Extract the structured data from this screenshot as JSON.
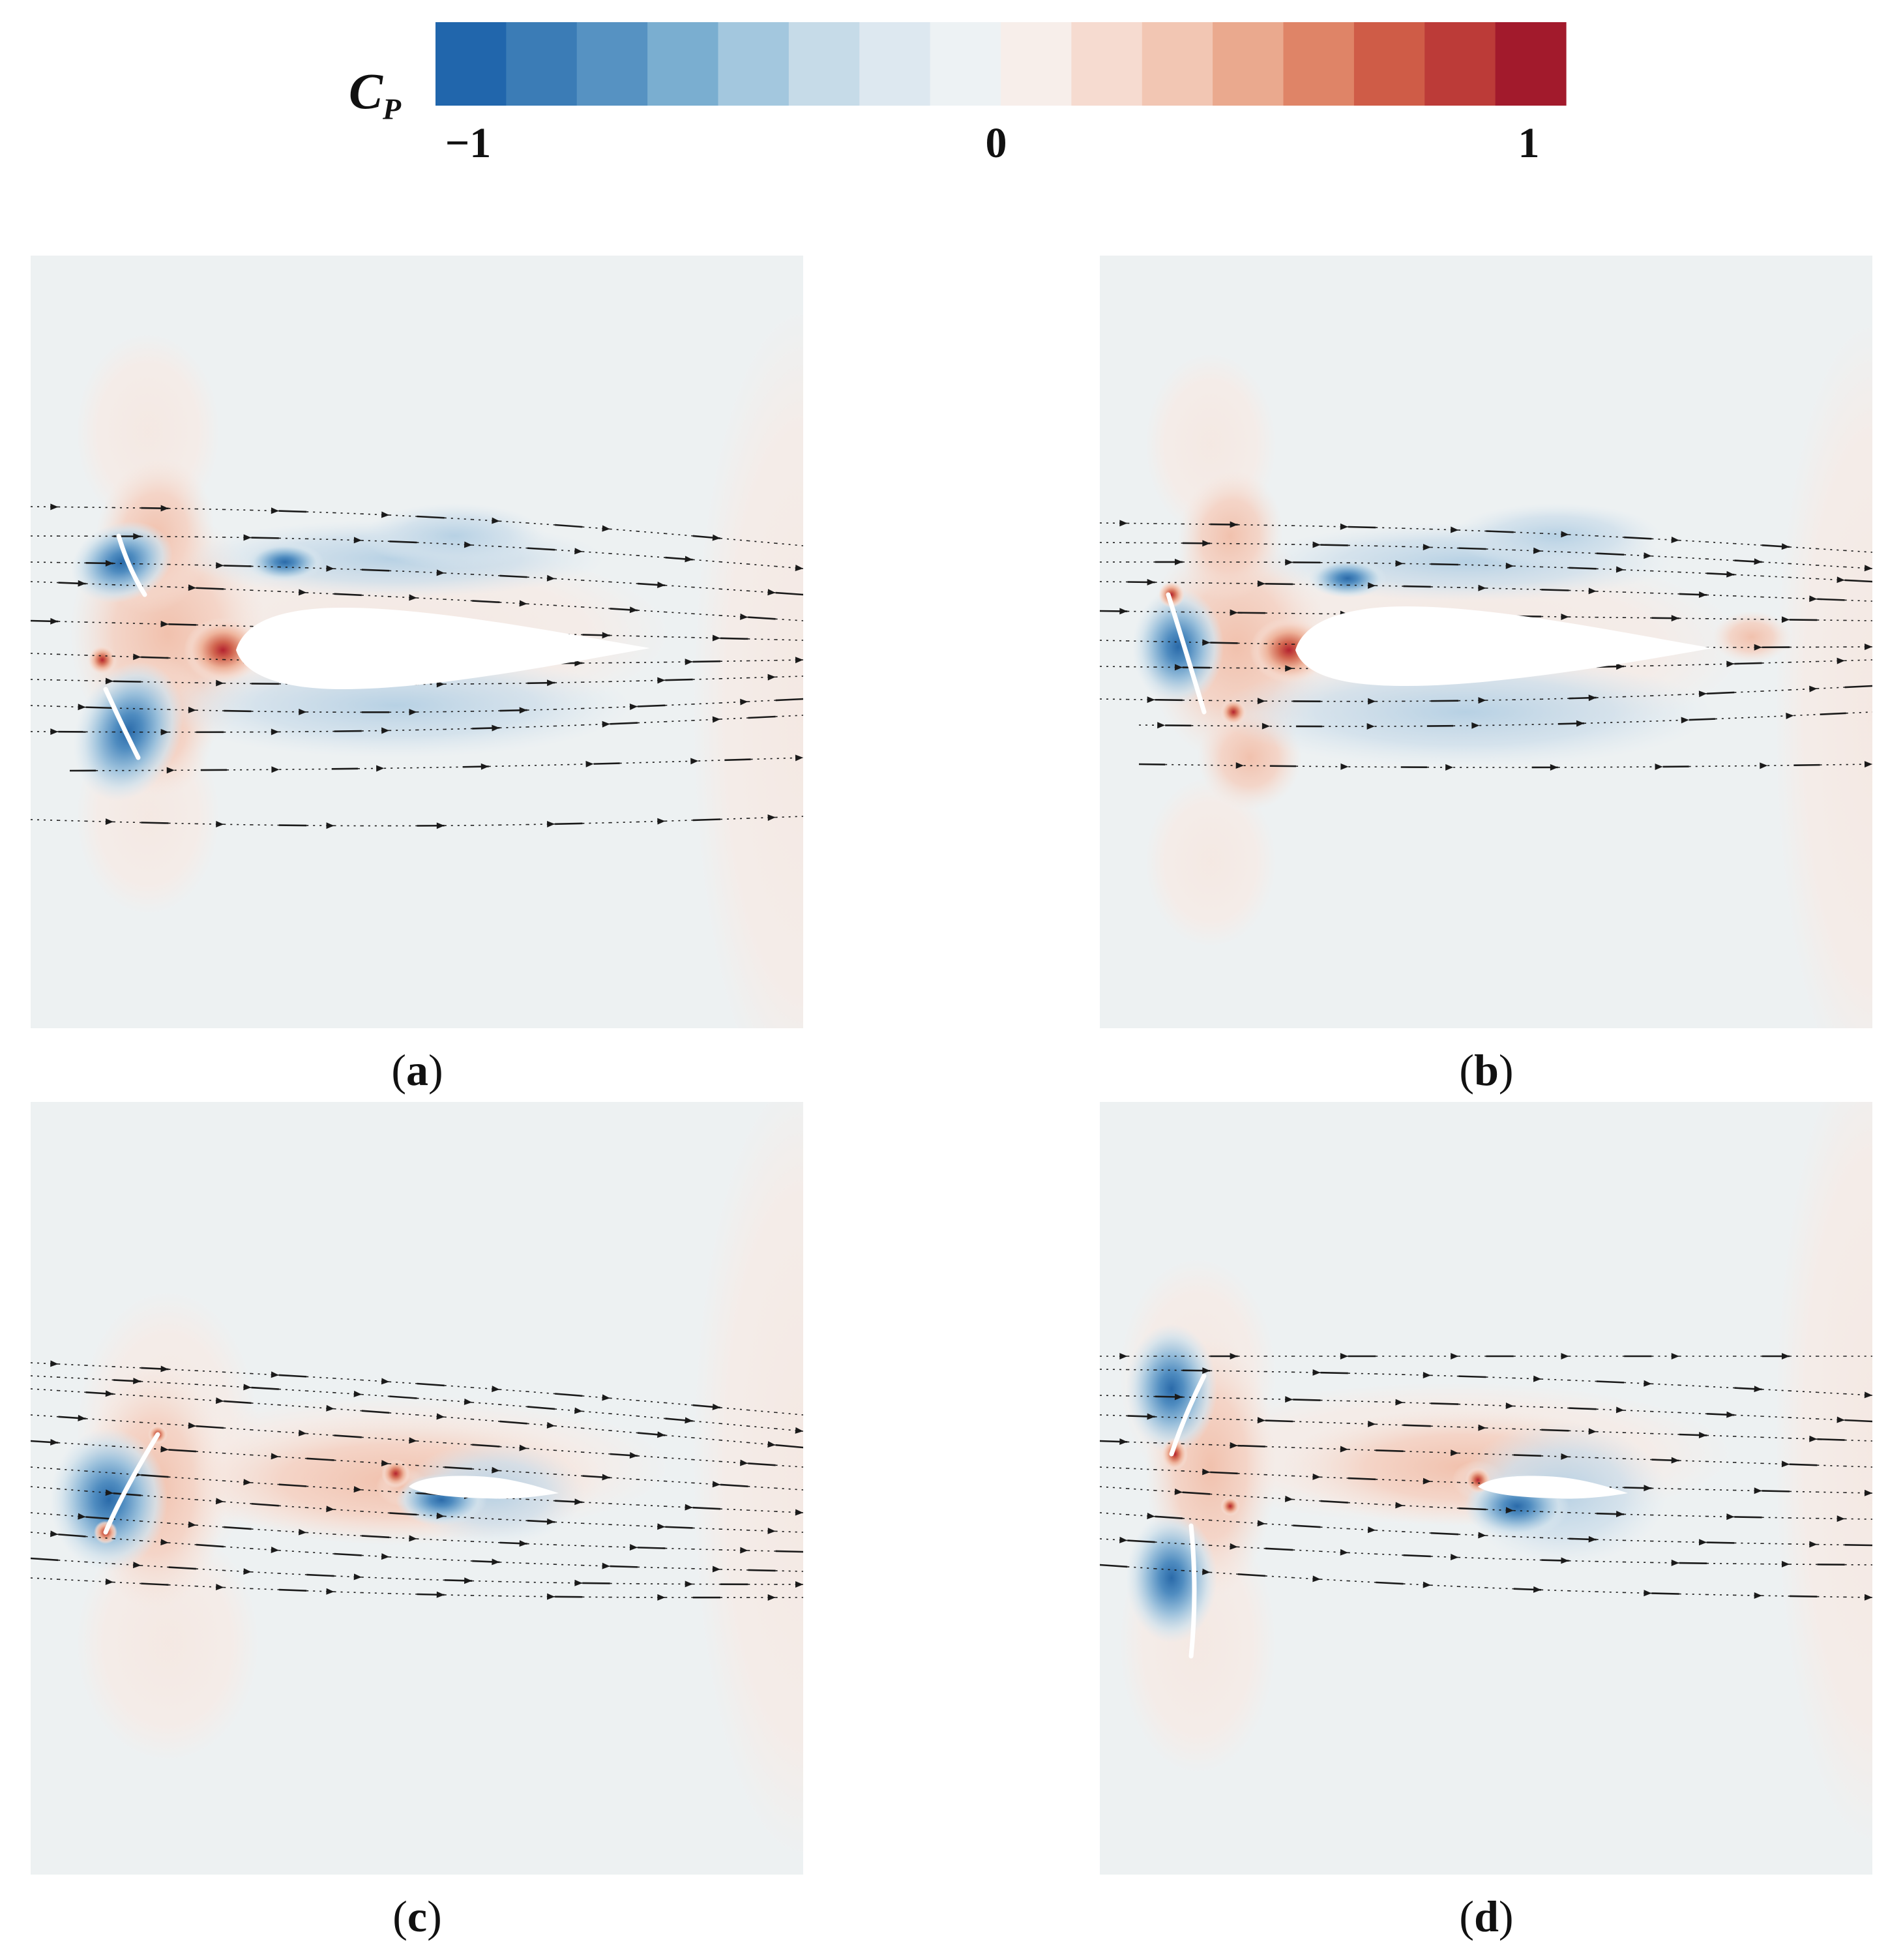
{
  "colorbar": {
    "label_main": "C",
    "label_sub": "P",
    "ticks": [
      "−1",
      "0",
      "1"
    ],
    "colors": [
      "#2166ac",
      "#3b7cb6",
      "#5692c2",
      "#7aaed0",
      "#a3c7de",
      "#c6dbe8",
      "#dde8f0",
      "#edf2f4",
      "#f7eeea",
      "#f6dbd0",
      "#f2c6b3",
      "#eaa98e",
      "#df8467",
      "#cf5c47",
      "#bc3b38",
      "#a21a2c"
    ],
    "range": [
      -1,
      1
    ]
  },
  "panels": [
    {
      "id": "a",
      "open": "(",
      "letter": "a",
      "close": ")"
    },
    {
      "id": "b",
      "open": "(",
      "letter": "b",
      "close": ")"
    },
    {
      "id": "c",
      "open": "(",
      "letter": "c",
      "close": ")"
    },
    {
      "id": "d",
      "open": "(",
      "letter": "d",
      "close": ")"
    }
  ]
}
